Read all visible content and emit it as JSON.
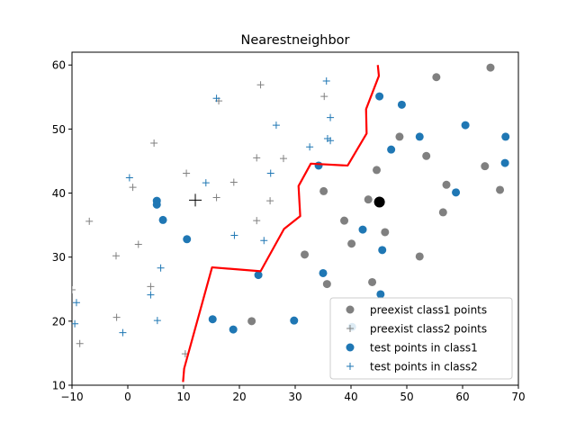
{
  "chart_data": {
    "type": "scatter",
    "title": "Nearestneighbor",
    "xlabel": "",
    "ylabel": "",
    "xlim": [
      -10,
      70
    ],
    "ylim": [
      10,
      62
    ],
    "xticks": [
      -10,
      0,
      10,
      20,
      30,
      40,
      50,
      60,
      70
    ],
    "yticks": [
      10,
      20,
      30,
      40,
      50,
      60
    ],
    "grid": false,
    "legend_placement": "lower-right",
    "series": [
      {
        "name": "preexist class1 points",
        "marker": "circle",
        "color": "#808080",
        "points": [
          [
            65,
            59.6
          ],
          [
            55.3,
            58.1
          ],
          [
            48.7,
            48.8
          ],
          [
            53.5,
            45.8
          ],
          [
            57.1,
            41.3
          ],
          [
            64,
            44.2
          ],
          [
            66.7,
            40.5
          ],
          [
            56.5,
            37
          ],
          [
            44.6,
            43.6
          ],
          [
            35.1,
            40.3
          ],
          [
            43.1,
            39
          ],
          [
            46.1,
            33.9
          ],
          [
            38.8,
            35.7
          ],
          [
            40.1,
            32.1
          ],
          [
            52.3,
            30.1
          ],
          [
            31.7,
            30.4
          ],
          [
            43.8,
            26.1
          ],
          [
            35.7,
            25.8
          ],
          [
            22.2,
            20
          ]
        ]
      },
      {
        "name": "preexist class2 points",
        "marker": "plus",
        "color": "#808080",
        "points": [
          [
            23.8,
            56.9
          ],
          [
            35.2,
            55.1
          ],
          [
            16.3,
            54.4
          ],
          [
            4.7,
            47.8
          ],
          [
            23.1,
            45.5
          ],
          [
            27.9,
            45.4
          ],
          [
            10.5,
            43.1
          ],
          [
            0.9,
            40.9
          ],
          [
            19,
            41.7
          ],
          [
            15.9,
            39.3
          ],
          [
            25.5,
            38.8
          ],
          [
            -6.9,
            35.6
          ],
          [
            23.1,
            35.7
          ],
          [
            1.9,
            32
          ],
          [
            -2.1,
            30.2
          ],
          [
            4.1,
            25.4
          ],
          [
            -10,
            24.9
          ],
          [
            -2,
            20.6
          ],
          [
            -8.6,
            16.5
          ],
          [
            10.3,
            14.9
          ]
        ]
      },
      {
        "name": "test points in class1",
        "marker": "circle",
        "color": "#1f77b4",
        "points": [
          [
            45.1,
            55.1
          ],
          [
            49.1,
            53.8
          ],
          [
            60.5,
            50.6
          ],
          [
            52.3,
            48.8
          ],
          [
            67.7,
            48.8
          ],
          [
            47.2,
            46.8
          ],
          [
            34.2,
            44.3
          ],
          [
            58.8,
            40.1
          ],
          [
            67.6,
            44.7
          ],
          [
            5.2,
            38.8
          ],
          [
            5.2,
            38.2
          ],
          [
            6.3,
            35.8
          ],
          [
            10.6,
            32.8
          ],
          [
            42.1,
            34.3
          ],
          [
            45.6,
            31.1
          ],
          [
            23.4,
            27.2
          ],
          [
            35,
            27.5
          ],
          [
            15.2,
            20.3
          ],
          [
            18.9,
            18.7
          ],
          [
            29.8,
            20.1
          ],
          [
            45.3,
            24.2
          ],
          [
            40.2,
            19.1
          ]
        ]
      },
      {
        "name": "test points in class2",
        "marker": "plus",
        "color": "#1f77b4",
        "points": [
          [
            35.6,
            57.5
          ],
          [
            15.9,
            54.8
          ],
          [
            36.3,
            51.8
          ],
          [
            26.6,
            50.6
          ],
          [
            36.3,
            48.2
          ],
          [
            35.8,
            48.5
          ],
          [
            32.6,
            47.2
          ],
          [
            25.6,
            43.1
          ],
          [
            0.3,
            42.4
          ],
          [
            14,
            41.6
          ],
          [
            19.1,
            33.4
          ],
          [
            24.4,
            32.6
          ],
          [
            5.9,
            28.3
          ],
          [
            4.1,
            24.1
          ],
          [
            -9.2,
            22.9
          ],
          [
            -9.5,
            19.6
          ],
          [
            5.3,
            20.1
          ],
          [
            -0.9,
            18.2
          ]
        ]
      }
    ],
    "test_point": {
      "marker": "circle",
      "color": "#000000",
      "point": [
        45.1,
        38.6
      ]
    },
    "train_point": {
      "marker": "plus",
      "color": "#000000",
      "point": [
        12.1,
        38.9
      ]
    },
    "boundary": {
      "color": "#ff0000",
      "points": [
        [
          9.9,
          10.5
        ],
        [
          10.1,
          12.6
        ],
        [
          15.1,
          28.4
        ],
        [
          23.8,
          27.8
        ],
        [
          28,
          34.4
        ],
        [
          30.9,
          36.4
        ],
        [
          30.6,
          41.1
        ],
        [
          32.8,
          44.6
        ],
        [
          39.4,
          44.3
        ],
        [
          42.8,
          49.3
        ],
        [
          42.7,
          53.1
        ],
        [
          45,
          58.3
        ],
        [
          44.8,
          60
        ]
      ]
    }
  }
}
